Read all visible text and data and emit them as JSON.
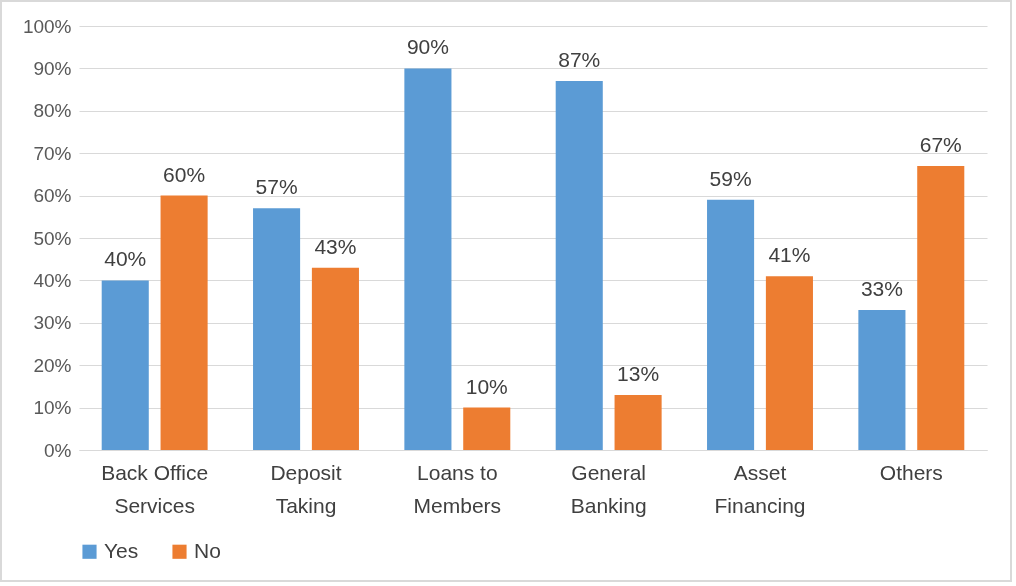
{
  "chart_data": {
    "type": "bar",
    "categories": [
      "Back Office Services",
      "Deposit Taking",
      "Loans to Members",
      "General Banking",
      "Asset Financing",
      "Others"
    ],
    "series": [
      {
        "name": "Yes",
        "color": "#5b9bd5",
        "values": [
          40,
          57,
          90,
          87,
          59,
          33
        ],
        "value_labels": [
          "40%",
          "57%",
          "90%",
          "87%",
          "59%",
          "33%"
        ]
      },
      {
        "name": "No",
        "color": "#ed7d31",
        "values": [
          60,
          43,
          10,
          13,
          41,
          67
        ],
        "value_labels": [
          "60%",
          "43%",
          "10%",
          "13%",
          "41%",
          "67%"
        ]
      }
    ],
    "ylim": [
      0,
      100
    ],
    "yticks": [
      {
        "value": 0,
        "label": "0%"
      },
      {
        "value": 10,
        "label": "10%"
      },
      {
        "value": 20,
        "label": "20%"
      },
      {
        "value": 30,
        "label": "30%"
      },
      {
        "value": 40,
        "label": "40%"
      },
      {
        "value": 50,
        "label": "50%"
      },
      {
        "value": 60,
        "label": "60%"
      },
      {
        "value": 70,
        "label": "70%"
      },
      {
        "value": 80,
        "label": "80%"
      },
      {
        "value": 90,
        "label": "90%"
      },
      {
        "value": 100,
        "label": "100%"
      }
    ],
    "grid": "y",
    "legend": "bottom"
  }
}
